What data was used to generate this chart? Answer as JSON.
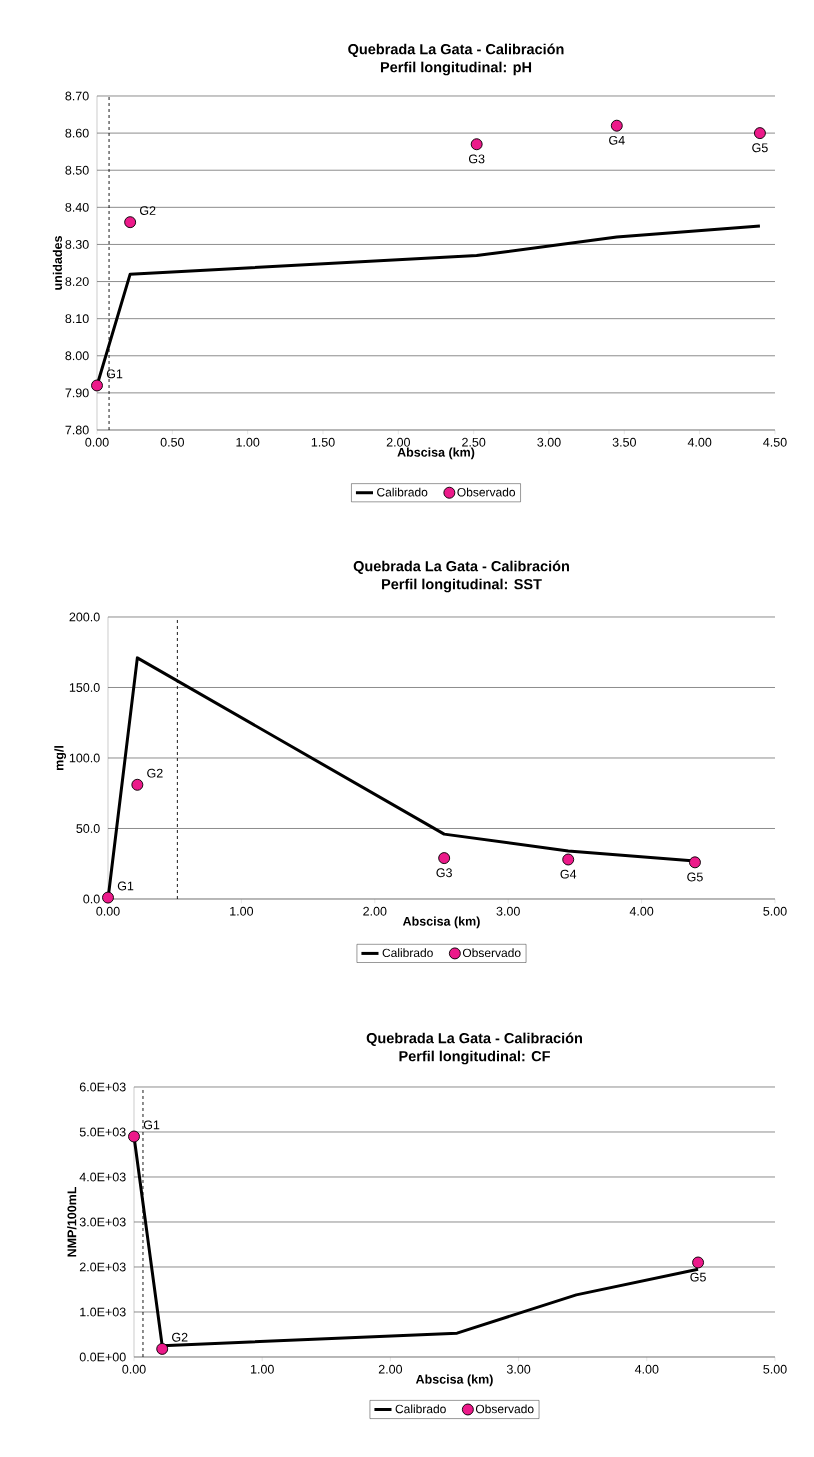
{
  "chart_data": [
    {
      "type": "line",
      "title": "Quebrada La Gata - Calibración",
      "subtitle": "Perfil longitudinal: pH",
      "xlabel": "Abscisa (km)",
      "ylabel": "unidades",
      "xlim": [
        0,
        4.5
      ],
      "xticks": [
        {
          "value": 0,
          "label": "0.00"
        },
        {
          "value": 0.5,
          "label": "0.50"
        },
        {
          "value": 1,
          "label": "1.00"
        },
        {
          "value": 1.5,
          "label": "1.50"
        },
        {
          "value": 2,
          "label": "2.00"
        },
        {
          "value": 2.5,
          "label": "2.50"
        },
        {
          "value": 3,
          "label": "3.00"
        },
        {
          "value": 3.5,
          "label": "3.50"
        },
        {
          "value": 4,
          "label": "4.00"
        },
        {
          "value": 4.5,
          "label": "4.50"
        }
      ],
      "ylim": [
        7.8,
        8.7
      ],
      "yticks": [
        {
          "value": 7.8,
          "label": "7.80"
        },
        {
          "value": 7.9,
          "label": "7.90"
        },
        {
          "value": 8.0,
          "label": "8.00"
        },
        {
          "value": 8.1,
          "label": "8.10"
        },
        {
          "value": 8.2,
          "label": "8.20"
        },
        {
          "value": 8.3,
          "label": "8.30"
        },
        {
          "value": 8.4,
          "label": "8.40"
        },
        {
          "value": 8.5,
          "label": "8.50"
        },
        {
          "value": 8.6,
          "label": "8.60"
        },
        {
          "value": 8.7,
          "label": "8.70"
        }
      ],
      "grid": "y",
      "legend": "bottom",
      "series": [
        {
          "name": "Calibrado",
          "color": "#000000",
          "marker": "none",
          "x": [
            0,
            0.22,
            2.52,
            3.45,
            4.4
          ],
          "values": [
            7.92,
            8.22,
            8.27,
            8.32,
            8.35
          ]
        },
        {
          "name": "Observado",
          "type": "scatter",
          "color": "#ec1a8a",
          "marker": "circle",
          "x": [
            0,
            0.22,
            2.52,
            3.45,
            4.4
          ],
          "values": [
            7.92,
            8.36,
            8.57,
            8.62,
            8.6
          ]
        }
      ],
      "ref_lines": [
        {
          "axis": "x",
          "value": 0.08,
          "color": "#000000",
          "line_style": "dashed"
        }
      ],
      "annotations": [
        {
          "text": "G1",
          "x": 0,
          "y": 7.92
        },
        {
          "text": "G2",
          "x": 0.22,
          "y": 8.36
        },
        {
          "text": "G3",
          "x": 2.52,
          "y": 8.57
        },
        {
          "text": "G4",
          "x": 3.45,
          "y": 8.62
        },
        {
          "text": "G5",
          "x": 4.4,
          "y": 8.6
        }
      ]
    },
    {
      "type": "line",
      "title": "Quebrada La Gata - Calibración",
      "subtitle": "Perfil longitudinal: SST",
      "xlabel": "Abscisa (km)",
      "ylabel": "mg/l",
      "xlim": [
        0,
        5
      ],
      "xticks": [
        {
          "value": 0,
          "label": "0.00"
        },
        {
          "value": 1,
          "label": "1.00"
        },
        {
          "value": 2,
          "label": "2.00"
        },
        {
          "value": 3,
          "label": "3.00"
        },
        {
          "value": 4,
          "label": "4.00"
        },
        {
          "value": 5,
          "label": "5.00"
        }
      ],
      "ylim": [
        0,
        200
      ],
      "yticks": [
        {
          "value": 0,
          "label": "0.0"
        },
        {
          "value": 50,
          "label": "50.0"
        },
        {
          "value": 100,
          "label": "100.0"
        },
        {
          "value": 150,
          "label": "150.0"
        },
        {
          "value": 200,
          "label": "200.0"
        }
      ],
      "grid": "y",
      "legend": "bottom",
      "series": [
        {
          "name": "Calibrado",
          "color": "#000000",
          "marker": "none",
          "x": [
            0,
            0.22,
            2.52,
            3.45,
            4.4
          ],
          "values": [
            0,
            171,
            46,
            34,
            27
          ]
        },
        {
          "name": "Observado",
          "type": "scatter",
          "color": "#ec1a8a",
          "marker": "circle",
          "x": [
            0,
            0.22,
            2.52,
            3.45,
            4.4
          ],
          "values": [
            1,
            81,
            29,
            28,
            26
          ]
        }
      ],
      "ref_lines": [
        {
          "axis": "x",
          "value": 0.52,
          "color": "#000000",
          "line_style": "dashed"
        }
      ],
      "annotations": [
        {
          "text": "G1",
          "x": 0,
          "y": 1
        },
        {
          "text": "G2",
          "x": 0.22,
          "y": 81
        },
        {
          "text": "G3",
          "x": 2.52,
          "y": 29
        },
        {
          "text": "G4",
          "x": 3.45,
          "y": 28
        },
        {
          "text": "G5",
          "x": 4.4,
          "y": 26
        }
      ]
    },
    {
      "type": "line",
      "title": "Quebrada La Gata - Calibración",
      "subtitle": "Perfil longitudinal: CF",
      "xlabel": "Abscisa (km)",
      "ylabel": "NMP/100mL",
      "xlim": [
        0,
        5
      ],
      "xticks": [
        {
          "value": 0,
          "label": "0.00"
        },
        {
          "value": 1,
          "label": "1.00"
        },
        {
          "value": 2,
          "label": "2.00"
        },
        {
          "value": 3,
          "label": "3.00"
        },
        {
          "value": 4,
          "label": "4.00"
        },
        {
          "value": 5,
          "label": "5.00"
        }
      ],
      "ylim": [
        0,
        6000
      ],
      "yticks": [
        {
          "value": 0,
          "label": "0.0E+00"
        },
        {
          "value": 1000,
          "label": "1.0E+03"
        },
        {
          "value": 2000,
          "label": "2.0E+03"
        },
        {
          "value": 3000,
          "label": "3.0E+03"
        },
        {
          "value": 4000,
          "label": "4.0E+03"
        },
        {
          "value": 5000,
          "label": "5.0E+03"
        },
        {
          "value": 6000,
          "label": "6.0E+03"
        }
      ],
      "grid": "y",
      "legend": "bottom",
      "series": [
        {
          "name": "Calibrado",
          "color": "#000000",
          "marker": "none",
          "x": [
            0,
            0.22,
            2.52,
            3.45,
            4.4
          ],
          "values": [
            4900,
            250,
            530,
            1380,
            1950
          ]
        },
        {
          "name": "Observado",
          "type": "scatter",
          "color": "#ec1a8a",
          "marker": "circle",
          "x": [
            0,
            0.22,
            4.4
          ],
          "values": [
            4900,
            180,
            2100
          ]
        }
      ],
      "ref_lines": [
        {
          "axis": "x",
          "value": 0.07,
          "color": "#000000",
          "line_style": "dashed"
        }
      ],
      "annotations": [
        {
          "text": "G1",
          "x": 0,
          "y": 4900
        },
        {
          "text": "G2",
          "x": 0.22,
          "y": 180
        },
        {
          "text": "G5",
          "x": 4.4,
          "y": 2100
        }
      ]
    }
  ]
}
